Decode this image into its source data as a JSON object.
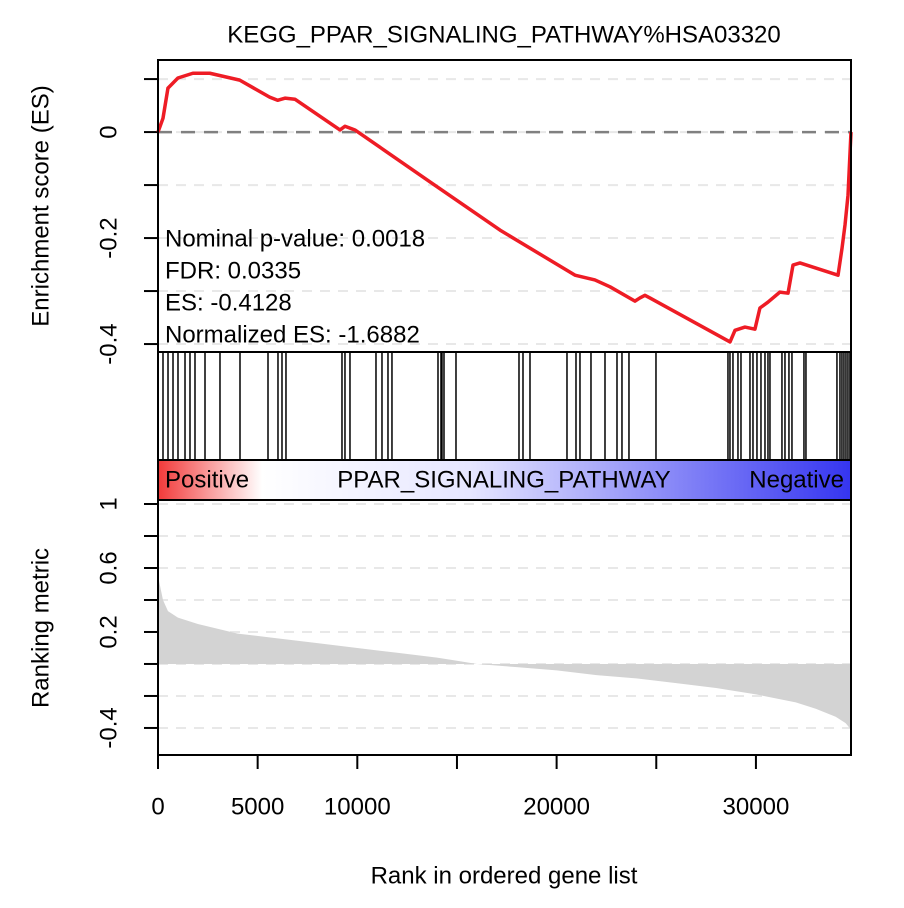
{
  "chart_data": [
    {
      "type": "line",
      "title": "KEGG_PPAR_SIGNALING_PATHWAY%HSA03320",
      "y_label": "Enrichment score (ES)",
      "annotations": [
        "Nominal p-value: 0.0018",
        "FDR: 0.0335",
        "ES: -0.4128",
        "Normalized ES: -1.6882"
      ],
      "xlim": [
        0,
        34770
      ],
      "ylim": [
        -0.415,
        0.136
      ],
      "yticks": [
        0.0,
        -0.2,
        -0.4
      ],
      "yticks_minor": [
        0.1,
        -0.1,
        -0.3
      ],
      "zero_line": true,
      "color": "#ee1c25",
      "x": [
        0,
        250,
        500,
        1000,
        1750,
        2600,
        4100,
        5600,
        6000,
        6370,
        6870,
        9130,
        9380,
        9880,
        13650,
        17160,
        20920,
        21920,
        22680,
        23930,
        24180,
        24430,
        24680,
        28700,
        28950,
        29450,
        29950,
        30200,
        30600,
        31200,
        31610,
        31860,
        32210,
        34120,
        34320,
        34470,
        34620,
        34770
      ],
      "values": [
        0,
        0.026,
        0.083,
        0.102,
        0.111,
        0.111,
        0.098,
        0.066,
        0.06,
        0.064,
        0.062,
        0.004,
        0.011,
        0.004,
        -0.094,
        -0.185,
        -0.27,
        -0.279,
        -0.292,
        -0.319,
        -0.313,
        -0.308,
        -0.313,
        -0.396,
        -0.374,
        -0.368,
        -0.372,
        -0.332,
        -0.321,
        -0.302,
        -0.304,
        -0.251,
        -0.247,
        -0.27,
        -0.219,
        -0.175,
        -0.119,
        0
      ]
    },
    {
      "type": "hits",
      "xlim": [
        0,
        34770
      ],
      "colorbar_labels": [
        "Positive",
        "PPAR_SIGNALING_PATHWAY",
        "Negative"
      ],
      "x": [
        251,
        502,
        753,
        1003,
        1355,
        1605,
        1856,
        2358,
        3110,
        4114,
        5519,
        6020,
        6221,
        6421,
        9231,
        9381,
        9632,
        10937,
        11238,
        11539,
        11739,
        14048,
        14198,
        14248,
        14349,
        14951,
        18112,
        18313,
        18664,
        20520,
        20972,
        21172,
        21724,
        22427,
        23029,
        23279,
        23630,
        24985,
        28597,
        28698,
        28848,
        29099,
        29250,
        29701,
        29852,
        30052,
        30253,
        30454,
        30604,
        30704,
        31306,
        31457,
        31657,
        31808,
        32410,
        32510,
        34065,
        34216,
        34316,
        34416,
        34517,
        34617,
        34717
      ]
    },
    {
      "type": "area",
      "y_label": "Ranking metric",
      "x_label": "Rank in ordered gene list",
      "color": "#d3d3d3",
      "xlim": [
        0,
        34770
      ],
      "ylim": [
        -0.569,
        1.025
      ],
      "xticks": [
        0,
        5000,
        10000,
        20000,
        30000
      ],
      "xticks_minor": [
        15000,
        25000
      ],
      "yticks": [
        1.0,
        0.6,
        0.2,
        -0.4
      ],
      "yticks_minor": [
        0.8,
        0.4,
        0,
        -0.2
      ],
      "x": [
        0,
        250,
        500,
        1000,
        2000,
        4000,
        6000,
        8000,
        10000,
        12000,
        14000,
        15000,
        16000,
        18000,
        20000,
        22000,
        24000,
        26000,
        28000,
        30000,
        32000,
        33000,
        34000,
        34500,
        34770
      ],
      "values": [
        0.55,
        0.4,
        0.33,
        0.29,
        0.25,
        0.19,
        0.16,
        0.13,
        0.1,
        0.07,
        0.04,
        0.02,
        0.0,
        -0.02,
        -0.04,
        -0.07,
        -0.09,
        -0.12,
        -0.15,
        -0.19,
        -0.24,
        -0.28,
        -0.33,
        -0.37,
        -0.41
      ]
    }
  ]
}
